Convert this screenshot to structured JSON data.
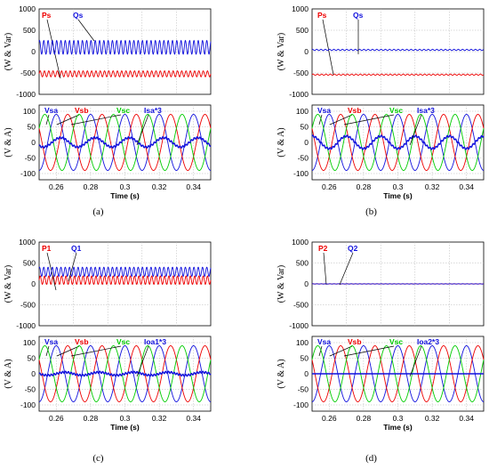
{
  "colors": {
    "red": "#ee0000",
    "blue": "#1010dd",
    "green": "#00cc00",
    "grid": "#b4b4b4"
  },
  "chart_data": [
    {
      "panel": "a",
      "caption": "(a)",
      "power": {
        "type": "line",
        "ylabel": "(W & Var)",
        "ylim": [
          -1000,
          1000
        ],
        "yticks": [
          "1000",
          "500",
          "0",
          "-500",
          "-1000"
        ],
        "series": [
          {
            "name": "Ps",
            "color": "red",
            "mean": -520,
            "ripple": 70
          },
          {
            "name": "Qs",
            "color": "blue",
            "mean": 100,
            "ripple": 160
          }
        ]
      },
      "voltage": {
        "type": "line",
        "ylabel": "(V & A)",
        "xlabel": "Time (s)",
        "xlim": [
          0.25,
          0.35
        ],
        "ylim": [
          -120,
          120
        ],
        "yticks": [
          "100",
          "50",
          "0",
          "-50",
          "-100"
        ],
        "xticks": [
          "0.26",
          "0.28",
          "0.3",
          "0.32",
          "0.34"
        ],
        "series": [
          {
            "name": "Vsa",
            "color": "blue",
            "amplitude": 90,
            "frequency_hz": 50,
            "phase_deg": 90
          },
          {
            "name": "Vsb",
            "color": "red",
            "amplitude": 90,
            "frequency_hz": 50,
            "phase_deg": -30
          },
          {
            "name": "Vsc",
            "color": "green",
            "amplitude": 90,
            "frequency_hz": 50,
            "phase_deg": -150
          },
          {
            "name": "Isa*3",
            "color": "blue",
            "amplitude": 15,
            "frequency_hz": 50,
            "phase_deg": 45
          }
        ]
      }
    },
    {
      "panel": "b",
      "caption": "(b)",
      "power": {
        "type": "line",
        "ylabel": "(W & Var)",
        "ylim": [
          -1000,
          1000
        ],
        "yticks": [
          "1000",
          "500",
          "0",
          "-500",
          "-1000"
        ],
        "series": [
          {
            "name": "Ps",
            "color": "red",
            "mean": -540,
            "ripple": 15
          },
          {
            "name": "Qs",
            "color": "blue",
            "mean": 40,
            "ripple": 15
          }
        ]
      },
      "voltage": {
        "type": "line",
        "ylabel": "(V & A)",
        "xlabel": "Time (s)",
        "xlim": [
          0.25,
          0.35
        ],
        "ylim": [
          -120,
          120
        ],
        "yticks": [
          "100",
          "50",
          "0",
          "-50",
          "-100"
        ],
        "xticks": [
          "0.26",
          "0.28",
          "0.3",
          "0.32",
          "0.34"
        ],
        "series": [
          {
            "name": "Vsa",
            "color": "blue",
            "amplitude": 90,
            "frequency_hz": 50,
            "phase_deg": 90
          },
          {
            "name": "Vsb",
            "color": "red",
            "amplitude": 90,
            "frequency_hz": 50,
            "phase_deg": -30
          },
          {
            "name": "Vsc",
            "color": "green",
            "amplitude": 90,
            "frequency_hz": 50,
            "phase_deg": -150
          },
          {
            "name": "Isa*3",
            "color": "blue",
            "amplitude": 20,
            "frequency_hz": 50,
            "phase_deg": -90
          }
        ]
      }
    },
    {
      "panel": "c",
      "caption": "(c)",
      "power": {
        "type": "line",
        "ylabel": "(W & Var)",
        "ylim": [
          -1000,
          1000
        ],
        "yticks": [
          "1000",
          "500",
          "0",
          "-500",
          "-1000"
        ],
        "series": [
          {
            "name": "P1",
            "color": "red",
            "mean": 90,
            "ripple": 100
          },
          {
            "name": "Q1",
            "color": "blue",
            "mean": 290,
            "ripple": 110
          }
        ]
      },
      "voltage": {
        "type": "line",
        "ylabel": "(V & A)",
        "xlabel": "Time (s)",
        "xlim": [
          0.25,
          0.35
        ],
        "ylim": [
          -120,
          120
        ],
        "yticks": [
          "100",
          "50",
          "0",
          "-50",
          "-100"
        ],
        "xticks": [
          "0.26",
          "0.28",
          "0.3",
          "0.32",
          "0.34"
        ],
        "series": [
          {
            "name": "Vsa",
            "color": "blue",
            "amplitude": 90,
            "frequency_hz": 50,
            "phase_deg": 90
          },
          {
            "name": "Vsb",
            "color": "red",
            "amplitude": 90,
            "frequency_hz": 50,
            "phase_deg": -30
          },
          {
            "name": "Vsc",
            "color": "green",
            "amplitude": 90,
            "frequency_hz": 50,
            "phase_deg": -150
          },
          {
            "name": "Ioa1*3",
            "color": "blue",
            "amplitude": 5,
            "frequency_hz": 50,
            "phase_deg": 0
          }
        ]
      }
    },
    {
      "panel": "d",
      "caption": "(d)",
      "power": {
        "type": "line",
        "ylabel": "(W & Var)",
        "ylim": [
          -1000,
          1000
        ],
        "yticks": [
          "1000",
          "500",
          "0",
          "-500",
          "-1000"
        ],
        "series": [
          {
            "name": "P2",
            "color": "red",
            "mean": 0,
            "ripple": 4
          },
          {
            "name": "Q2",
            "color": "blue",
            "mean": 0,
            "ripple": 4
          }
        ]
      },
      "voltage": {
        "type": "line",
        "ylabel": "(V & A)",
        "xlabel": "Time (s)",
        "xlim": [
          0.25,
          0.35
        ],
        "ylim": [
          -120,
          120
        ],
        "yticks": [
          "100",
          "50",
          "0",
          "-50",
          "-100"
        ],
        "xticks": [
          "0.26",
          "0.28",
          "0.3",
          "0.32",
          "0.34"
        ],
        "series": [
          {
            "name": "Vsa",
            "color": "blue",
            "amplitude": 90,
            "frequency_hz": 50,
            "phase_deg": 90
          },
          {
            "name": "Vsb",
            "color": "red",
            "amplitude": 90,
            "frequency_hz": 50,
            "phase_deg": -30
          },
          {
            "name": "Vsc",
            "color": "green",
            "amplitude": 90,
            "frequency_hz": 50,
            "phase_deg": -150
          },
          {
            "name": "Ioa2*3",
            "color": "blue",
            "amplitude": 0,
            "frequency_hz": 50,
            "phase_deg": 0
          }
        ]
      }
    }
  ]
}
